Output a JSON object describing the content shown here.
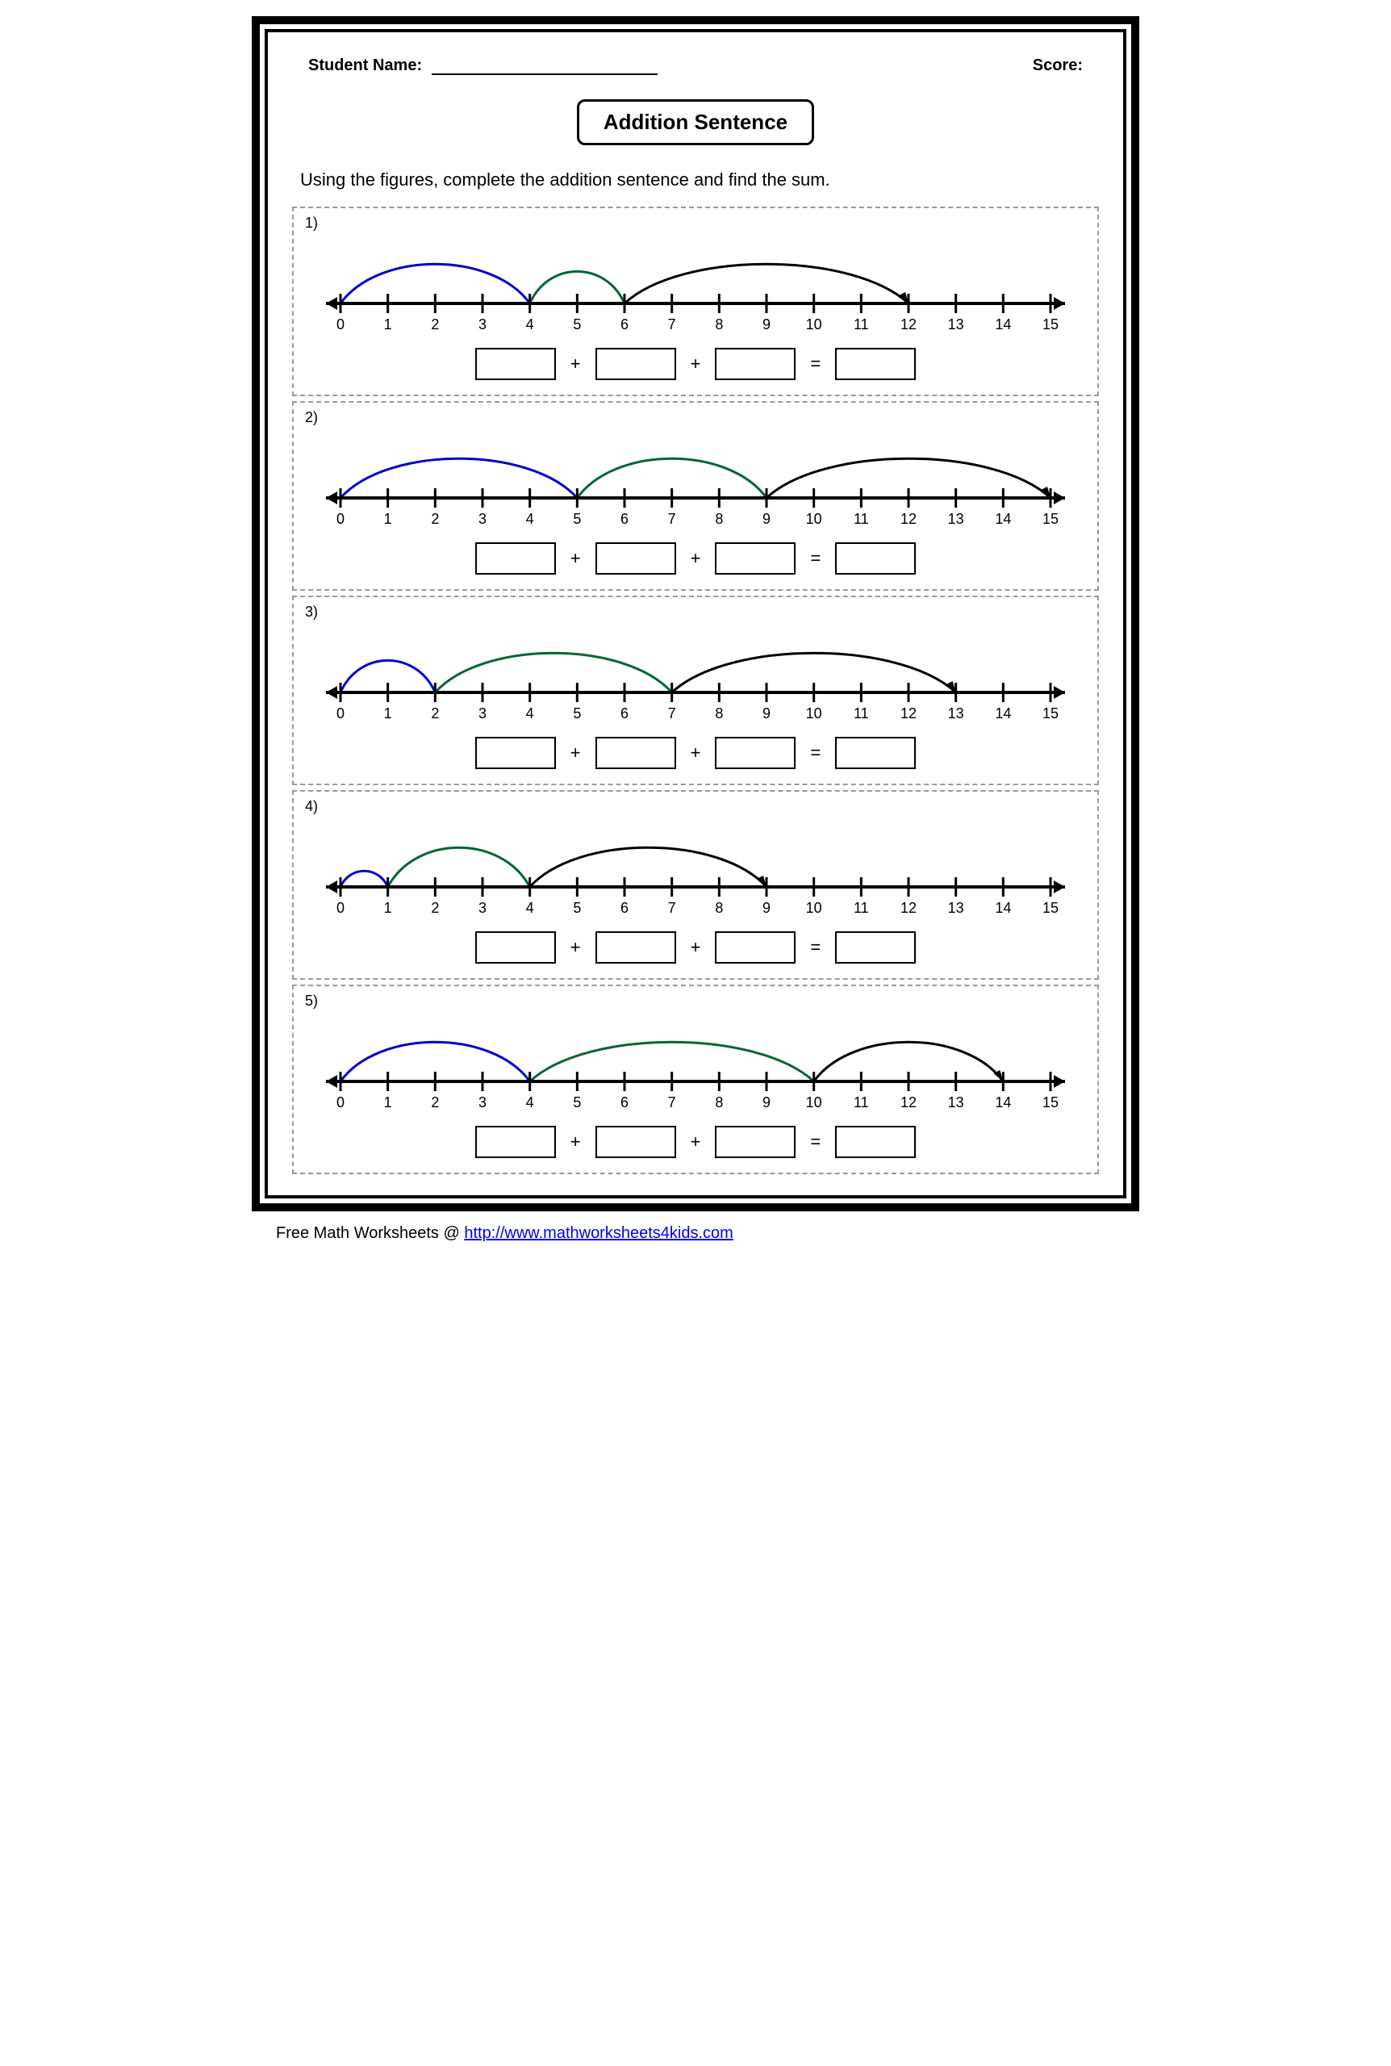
{
  "header": {
    "student_label": "Student Name:",
    "score_label": "Score:"
  },
  "title": "Addition Sentence",
  "instructions": "Using the figures, complete the addition sentence and find the sum.",
  "operators": {
    "plus": "+",
    "equals": "="
  },
  "numberline": {
    "min": 0,
    "max": 15,
    "tick_labels": [
      "0",
      "1",
      "2",
      "3",
      "4",
      "5",
      "6",
      "7",
      "8",
      "9",
      "10",
      "11",
      "12",
      "13",
      "14",
      "15"
    ],
    "axis_color": "#000000",
    "axis_stroke_width": 4,
    "tick_height": 12,
    "tick_stroke_width": 3,
    "label_fontsize": 18,
    "arc_stroke_width": 3,
    "arc_colors": {
      "first": "#0000cc",
      "second": "#006633",
      "third": "#000000"
    },
    "third_has_arrowhead": true
  },
  "problems": [
    {
      "num": "1)",
      "arcs": [
        {
          "from": 0,
          "to": 4,
          "color": "first"
        },
        {
          "from": 4,
          "to": 6,
          "color": "second"
        },
        {
          "from": 6,
          "to": 12,
          "color": "third"
        }
      ]
    },
    {
      "num": "2)",
      "arcs": [
        {
          "from": 0,
          "to": 5,
          "color": "first"
        },
        {
          "from": 5,
          "to": 9,
          "color": "second"
        },
        {
          "from": 9,
          "to": 15,
          "color": "third"
        }
      ]
    },
    {
      "num": "3)",
      "arcs": [
        {
          "from": 0,
          "to": 2,
          "color": "first"
        },
        {
          "from": 2,
          "to": 7,
          "color": "second"
        },
        {
          "from": 7,
          "to": 13,
          "color": "third"
        }
      ]
    },
    {
      "num": "4)",
      "arcs": [
        {
          "from": 0,
          "to": 1,
          "color": "first"
        },
        {
          "from": 1,
          "to": 4,
          "color": "second"
        },
        {
          "from": 4,
          "to": 9,
          "color": "third"
        }
      ]
    },
    {
      "num": "5)",
      "arcs": [
        {
          "from": 0,
          "to": 4,
          "color": "first"
        },
        {
          "from": 4,
          "to": 10,
          "color": "second"
        },
        {
          "from": 10,
          "to": 14,
          "color": "third"
        }
      ]
    }
  ],
  "footer": {
    "text": "Free Math Worksheets @ ",
    "link_text": "http://www.mathworksheets4kids.com"
  }
}
